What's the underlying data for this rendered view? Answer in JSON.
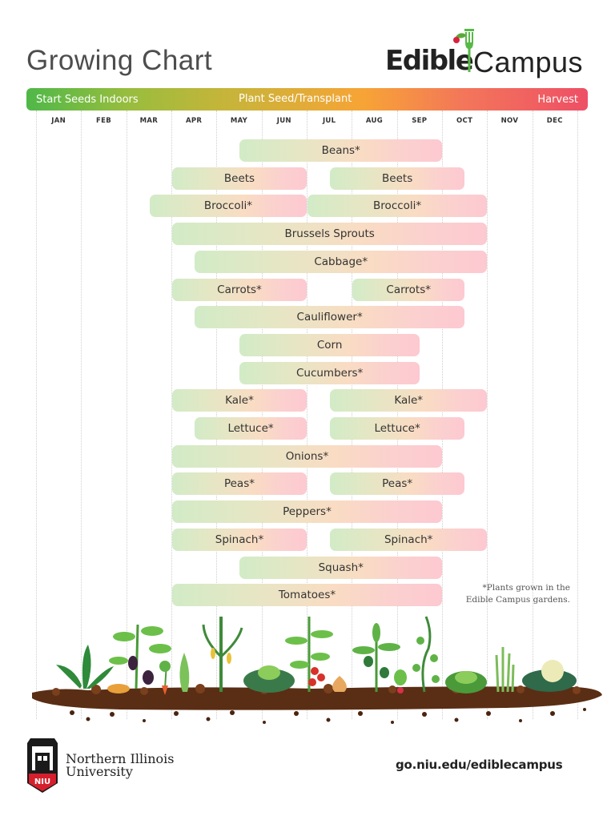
{
  "header": {
    "title": "Growing Chart",
    "logo": {
      "edible": "Edible",
      "campus": "Campus"
    }
  },
  "phases": {
    "start": "Start Seeds Indoors",
    "plant": "Plant Seed/Transplant",
    "harvest": "Harvest",
    "colors": [
      "#4fb848",
      "#c5b53a",
      "#f7a436",
      "#ee4f66"
    ]
  },
  "months": [
    "JAN",
    "FEB",
    "MAR",
    "APR",
    "MAY",
    "JUN",
    "JUL",
    "AUG",
    "SEP",
    "OCT",
    "NOV",
    "DEC"
  ],
  "chart_data": {
    "type": "gantt",
    "title": "Growing Chart",
    "xlabel": "",
    "ylabel": "",
    "x_unit": "month (0 = start of JAN, 12 = end of DEC)",
    "categories": [
      "JAN",
      "FEB",
      "MAR",
      "APR",
      "MAY",
      "JUN",
      "JUL",
      "AUG",
      "SEP",
      "OCT",
      "NOV",
      "DEC"
    ],
    "legend": [
      "Start Seeds Indoors",
      "Plant Seed/Transplant",
      "Harvest"
    ],
    "grid": true,
    "rows": [
      {
        "label": "Beans*",
        "spans": [
          [
            4.5,
            9.0
          ]
        ]
      },
      {
        "label": "Beets",
        "spans": [
          [
            3.0,
            6.0
          ],
          [
            6.5,
            9.5
          ]
        ]
      },
      {
        "label": "Broccoli*",
        "spans": [
          [
            2.5,
            6.0
          ],
          [
            6.0,
            10.0
          ]
        ]
      },
      {
        "label": "Brussels Sprouts",
        "spans": [
          [
            3.0,
            10.0
          ]
        ]
      },
      {
        "label": "Cabbage*",
        "spans": [
          [
            3.5,
            10.0
          ]
        ]
      },
      {
        "label": "Carrots*",
        "spans": [
          [
            3.0,
            6.0
          ],
          [
            7.0,
            9.5
          ]
        ]
      },
      {
        "label": "Cauliflower*",
        "spans": [
          [
            3.5,
            9.5
          ]
        ]
      },
      {
        "label": "Corn",
        "spans": [
          [
            4.5,
            8.5
          ]
        ]
      },
      {
        "label": "Cucumbers*",
        "spans": [
          [
            4.5,
            8.5
          ]
        ]
      },
      {
        "label": "Kale*",
        "spans": [
          [
            3.0,
            6.0
          ],
          [
            6.5,
            10.0
          ]
        ]
      },
      {
        "label": "Lettuce*",
        "spans": [
          [
            3.5,
            6.0
          ],
          [
            6.5,
            9.5
          ]
        ]
      },
      {
        "label": "Onions*",
        "spans": [
          [
            3.0,
            9.0
          ]
        ]
      },
      {
        "label": "Peas*",
        "spans": [
          [
            3.0,
            6.0
          ],
          [
            6.5,
            9.5
          ]
        ]
      },
      {
        "label": "Peppers*",
        "spans": [
          [
            3.0,
            9.0
          ]
        ]
      },
      {
        "label": "Spinach*",
        "spans": [
          [
            3.0,
            6.0
          ],
          [
            6.5,
            10.0
          ]
        ]
      },
      {
        "label": "Squash*",
        "spans": [
          [
            4.5,
            9.0
          ]
        ]
      },
      {
        "label": "Tomatoes*",
        "spans": [
          [
            3.0,
            9.0
          ]
        ]
      }
    ]
  },
  "footnote": [
    "*Plants grown in the",
    "Edible Campus gardens."
  ],
  "footer": {
    "university_line1": "Northern Illinois",
    "university_line2": "University",
    "badge": "NIU",
    "url": "go.niu.edu/ediblecampus"
  }
}
